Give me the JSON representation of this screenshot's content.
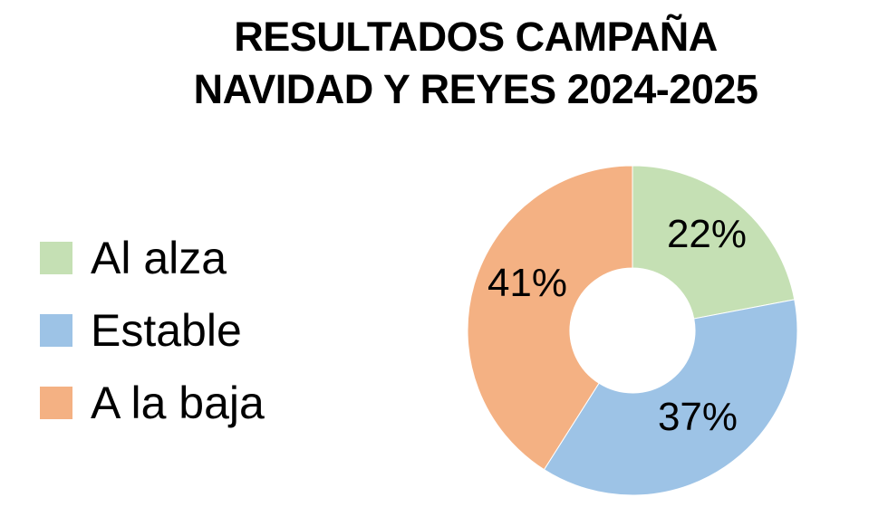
{
  "title": {
    "line1": "RESULTADOS CAMPAÑA",
    "line2": "NAVIDAD Y REYES 2024-2025"
  },
  "legend": [
    {
      "label": "Al alza",
      "color": "#C5E0B4"
    },
    {
      "label": "Estable",
      "color": "#9DC3E6"
    },
    {
      "label": "A la baja",
      "color": "#F4B183"
    }
  ],
  "chart_data": {
    "type": "pie",
    "subtype": "donut",
    "title": "RESULTADOS CAMPAÑA NAVIDAD Y REYES 2024-2025",
    "categories": [
      "Al alza",
      "Estable",
      "A la baja"
    ],
    "values": [
      22,
      37,
      41
    ],
    "unit": "%",
    "data_labels": [
      "22%",
      "37%",
      "41%"
    ],
    "colors": [
      "#C5E0B4",
      "#9DC3E6",
      "#F4B183"
    ],
    "start_angle": "12 o'clock, clockwise",
    "legend_position": "left"
  }
}
